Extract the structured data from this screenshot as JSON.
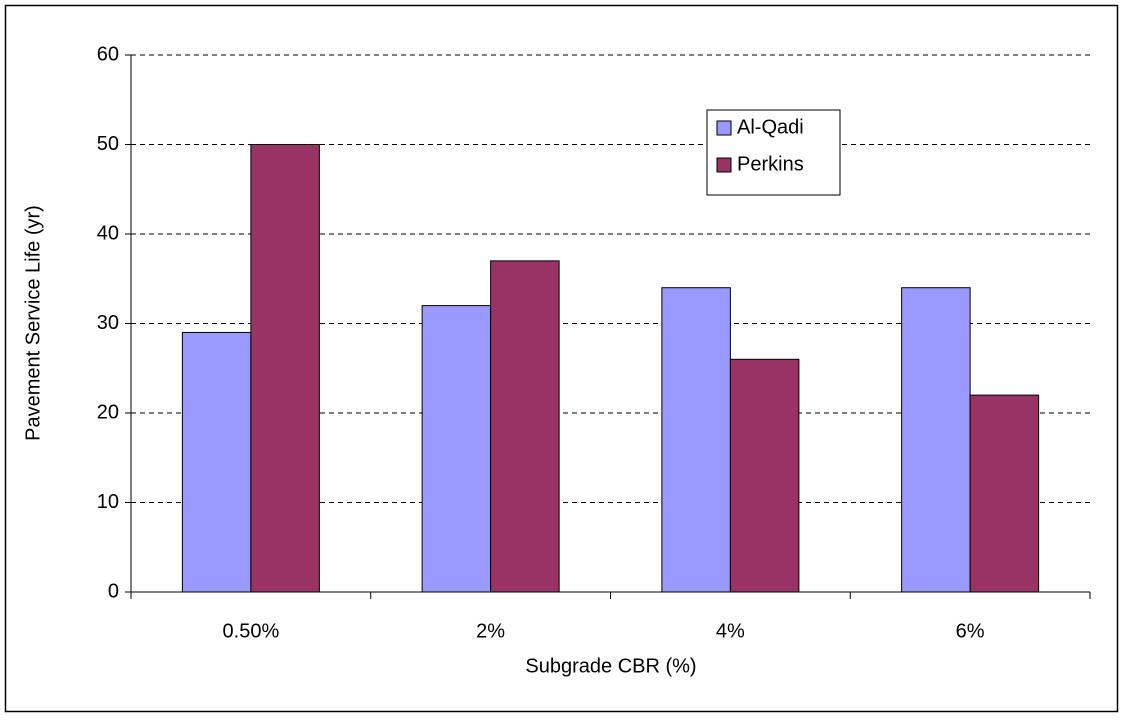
{
  "chart_data": {
    "type": "bar",
    "x_label": "Subgrade CBR (%)",
    "y_label": "Pavement Service Life (yr)",
    "categories": [
      "0.50%",
      "2%",
      "4%",
      "6%"
    ],
    "series": [
      {
        "name": "Al-Qadi",
        "color": "#9999ff",
        "values": [
          29,
          32,
          34,
          34
        ]
      },
      {
        "name": "Perkins",
        "color": "#993366",
        "values": [
          50,
          37,
          26,
          22
        ]
      }
    ],
    "ylim": [
      0,
      60
    ],
    "yticks": [
      0,
      10,
      20,
      30,
      40,
      50,
      60
    ],
    "grid": true
  }
}
